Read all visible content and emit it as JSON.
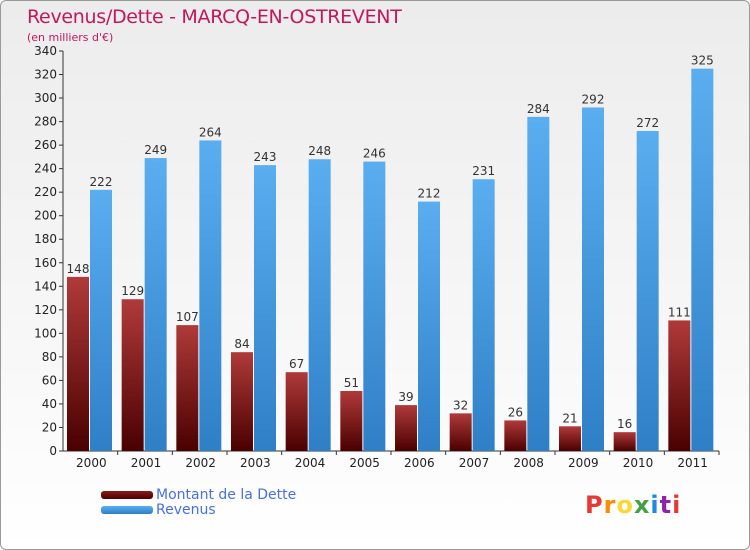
{
  "title": "Revenus/Dette - MARCQ-EN-OSTREVENT",
  "subtitle": "(en milliers d'€)",
  "logo": {
    "text": "Proxiti",
    "colors": [
      "#e53935",
      "#fb8c00",
      "#fdd835",
      "#43a047",
      "#1e88e5",
      "#8e24aa",
      "#e53935"
    ]
  },
  "legend": [
    {
      "label": "Montant de la Dette",
      "color": "#6b0a0a"
    },
    {
      "label": "Revenus",
      "color": "#4a9fe0"
    }
  ],
  "chart_data": {
    "type": "bar",
    "title": "Revenus/Dette - MARCQ-EN-OSTREVENT",
    "subtitle": "(en milliers d'€)",
    "categories": [
      "2000",
      "2001",
      "2002",
      "2003",
      "2004",
      "2005",
      "2006",
      "2007",
      "2008",
      "2009",
      "2010",
      "2011"
    ],
    "series": [
      {
        "name": "Montant de la Dette",
        "color": "#6b0a0a",
        "values": [
          148,
          129,
          107,
          84,
          67,
          51,
          39,
          32,
          26,
          21,
          16,
          111
        ]
      },
      {
        "name": "Revenus",
        "color": "#4a9fe0",
        "values": [
          222,
          249,
          264,
          243,
          248,
          246,
          212,
          231,
          284,
          292,
          272,
          325
        ]
      }
    ],
    "ylim": [
      0,
      340
    ],
    "yticks": [
      0,
      20,
      40,
      60,
      80,
      100,
      120,
      140,
      160,
      180,
      200,
      220,
      240,
      260,
      280,
      300,
      320,
      340
    ],
    "grid": false,
    "legend_position": "bottom-left"
  }
}
